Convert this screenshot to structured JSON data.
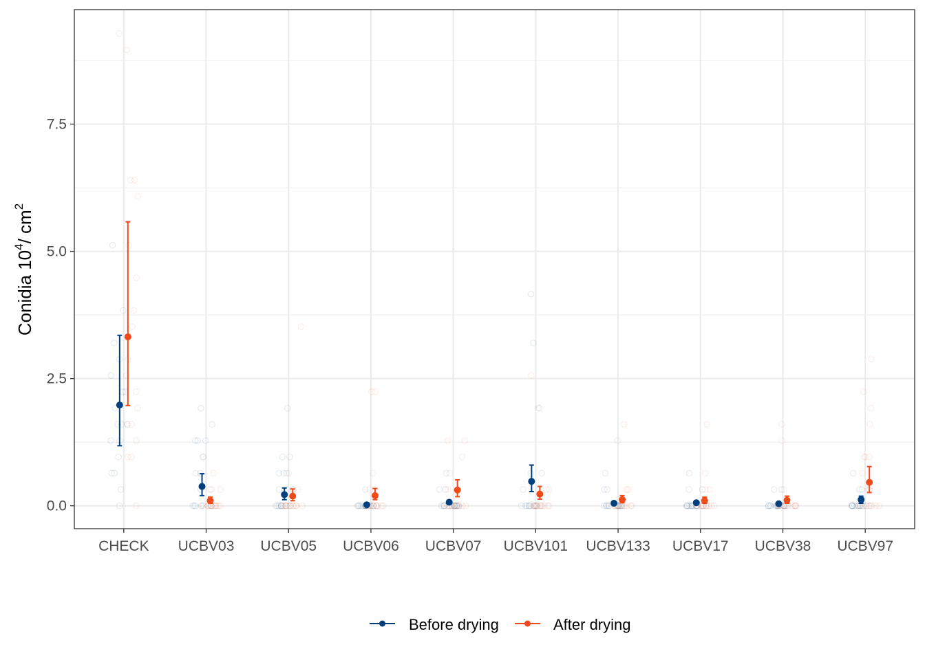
{
  "chart_data": {
    "type": "scatter",
    "title": "",
    "xlabel": "",
    "ylabel_parts": [
      "Conidia 10",
      "4",
      "/ cm",
      "2"
    ],
    "ylim": [
      -0.45,
      9.75
    ],
    "yticks": [
      0.0,
      2.5,
      5.0,
      7.5
    ],
    "ytick_labels": [
      "0.0",
      "2.5",
      "5.0",
      "7.5"
    ],
    "grid": true,
    "legend_position": "bottom",
    "categories": [
      "CHECK",
      "UCBV03",
      "UCBV05",
      "UCBV06",
      "UCBV07",
      "UCBV101",
      "UCBV133",
      "UCBV17",
      "UCBV38",
      "UCBV97"
    ],
    "series": [
      {
        "name": "Before drying",
        "color": "#003f7d",
        "means": [
          1.98,
          0.38,
          0.22,
          0.02,
          0.07,
          0.48,
          0.05,
          0.06,
          0.04,
          0.12
        ],
        "lower": [
          1.18,
          0.2,
          0.12,
          0.0,
          0.03,
          0.28,
          0.02,
          0.02,
          0.01,
          0.05
        ],
        "upper": [
          3.35,
          0.63,
          0.35,
          0.04,
          0.11,
          0.8,
          0.08,
          0.1,
          0.07,
          0.19
        ],
        "observations": [
          [
            0,
            0.32,
            0.64,
            0.64,
            0.96,
            1.28,
            1.28,
            1.6,
            1.6,
            1.6,
            1.92,
            2.24,
            2.24,
            2.56,
            2.88,
            3.2,
            3.84,
            5.12
          ],
          [
            0,
            0,
            0,
            0,
            0,
            0,
            0,
            0.32,
            0.32,
            0.64,
            0.64,
            0.96,
            1.28,
            1.28,
            1.28,
            1.6,
            1.92
          ],
          [
            0,
            0,
            0,
            0,
            0,
            0,
            0,
            0,
            0.32,
            0.32,
            0.32,
            0.64,
            0.64,
            0.64,
            0.96,
            0.96,
            1.92
          ],
          [
            0,
            0,
            0,
            0,
            0,
            0,
            0,
            0,
            0,
            0,
            0,
            0,
            0,
            0,
            0,
            0.32
          ],
          [
            0,
            0,
            0,
            0,
            0,
            0,
            0,
            0,
            0,
            0,
            0,
            0,
            0,
            0.32,
            0.32,
            0.64
          ],
          [
            0,
            0,
            0,
            0,
            0,
            0,
            0,
            0,
            0,
            0,
            0.32,
            0.64,
            0.64,
            1.92,
            3.2,
            4.16
          ],
          [
            0,
            0,
            0,
            0,
            0,
            0,
            0,
            0,
            0,
            0,
            0,
            0,
            0.32,
            0.32,
            0.64
          ],
          [
            0,
            0,
            0,
            0,
            0,
            0,
            0,
            0,
            0,
            0,
            0,
            0,
            0,
            0.32,
            0.32,
            0.64
          ],
          [
            0,
            0,
            0,
            0,
            0,
            0,
            0,
            0,
            0,
            0,
            0,
            0,
            0,
            0,
            0.32,
            0.32
          ],
          [
            0,
            0,
            0,
            0,
            0,
            0,
            0,
            0,
            0,
            0,
            0,
            0,
            0.32,
            0.32,
            0.32,
            0.64
          ]
        ]
      },
      {
        "name": "After drying",
        "color": "#f04a1a",
        "means": [
          3.32,
          0.1,
          0.19,
          0.2,
          0.31,
          0.23,
          0.12,
          0.1,
          0.11,
          0.46
        ],
        "lower": [
          1.97,
          0.05,
          0.1,
          0.12,
          0.18,
          0.13,
          0.06,
          0.05,
          0.05,
          0.26
        ],
        "upper": [
          5.58,
          0.17,
          0.33,
          0.34,
          0.51,
          0.38,
          0.2,
          0.17,
          0.19,
          0.77
        ],
        "observations": [
          [
            0,
            0.96,
            0.96,
            1.28,
            1.6,
            1.6,
            1.92,
            2.24,
            2.56,
            2.88,
            3.52,
            3.84,
            4.48,
            5.12,
            6.08,
            6.4,
            6.4,
            8.96,
            9.28
          ],
          [
            0,
            0,
            0,
            0,
            0,
            0,
            0,
            0,
            0,
            0,
            0,
            0,
            0.32,
            0.32,
            0.64,
            0.96
          ],
          [
            0,
            0,
            0,
            0,
            0,
            0,
            0,
            0,
            0,
            0,
            0,
            0,
            0.32,
            0.32,
            0.64,
            3.52
          ],
          [
            0,
            0,
            0,
            0,
            0,
            0,
            0,
            0,
            0,
            0,
            0.32,
            0.32,
            0.64,
            2.24,
            2.24
          ],
          [
            0,
            0,
            0,
            0,
            0,
            0,
            0,
            0,
            0,
            0,
            0.32,
            0.64,
            0.96,
            1.28,
            1.28
          ],
          [
            0,
            0,
            0,
            0,
            0,
            0,
            0,
            0,
            0,
            0,
            0,
            0.32,
            0.32,
            1.92,
            2.56
          ],
          [
            0,
            0,
            0,
            0,
            0,
            0,
            0,
            0,
            0,
            0,
            0,
            0.32,
            0.32,
            1.28,
            1.6
          ],
          [
            0,
            0,
            0,
            0,
            0,
            0,
            0,
            0,
            0,
            0,
            0,
            0.32,
            0.32,
            0.64,
            1.6
          ],
          [
            0,
            0,
            0,
            0,
            0,
            0,
            0,
            0,
            0,
            0,
            0,
            0,
            0.32,
            1.28,
            1.6
          ],
          [
            0,
            0,
            0,
            0,
            0,
            0,
            0,
            0,
            0.32,
            0.64,
            0.96,
            0.96,
            0.96,
            1.6,
            1.92,
            2.24,
            2.88
          ]
        ]
      }
    ]
  }
}
